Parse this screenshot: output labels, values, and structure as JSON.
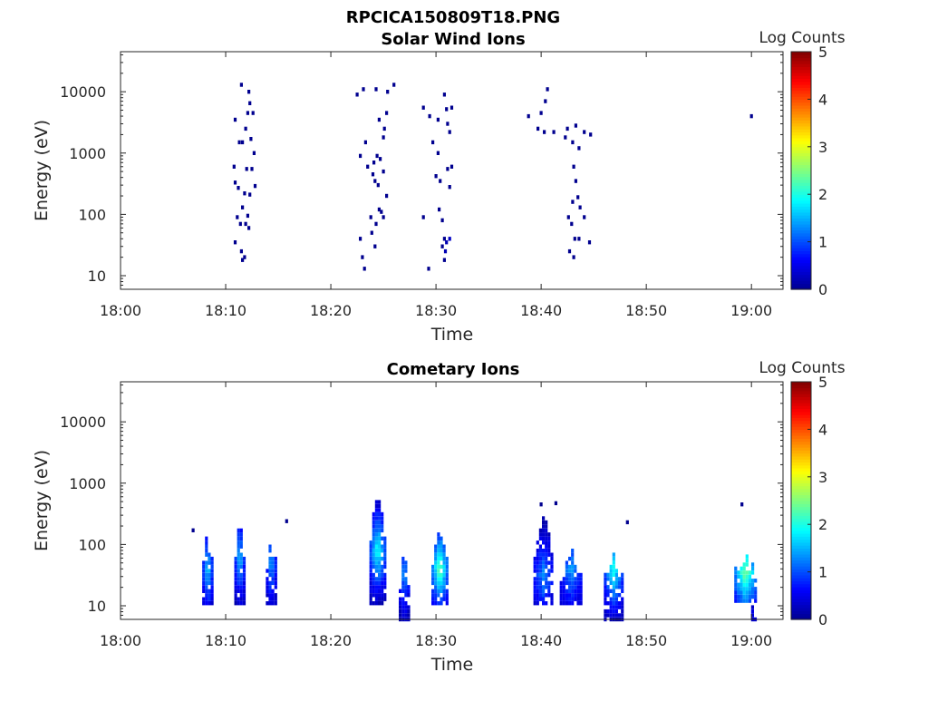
{
  "figure_title": "RPCICA150809T18.PNG",
  "colors": {
    "colormap": [
      "#00008f",
      "#0000ff",
      "#0080ff",
      "#00ffff",
      "#80ff80",
      "#ffff00",
      "#ff8000",
      "#ff0000",
      "#800000"
    ],
    "axis": "#262626"
  },
  "chart_data": [
    {
      "type": "heatmap",
      "title": "Solar Wind Ions",
      "xlabel": "Time",
      "ylabel": "Energy (eV)",
      "xticks": [
        "18:00",
        "18:10",
        "18:20",
        "18:30",
        "18:40",
        "18:50",
        "19:00"
      ],
      "xlim_minutes_after_1800": [
        0,
        63
      ],
      "yscale": "log",
      "ylim": [
        6,
        45000
      ],
      "yticks": [
        "10",
        "100",
        "1000",
        "10000"
      ],
      "colorbar": {
        "label": "Log Counts",
        "range": [
          0,
          5
        ],
        "ticks": [
          "0",
          "1",
          "2",
          "3",
          "4",
          "5"
        ]
      },
      "cells": [
        [
          10.8,
          600,
          0
        ],
        [
          11.5,
          13000,
          0
        ],
        [
          10.9,
          3500,
          0
        ],
        [
          11.3,
          1500,
          0
        ],
        [
          11.6,
          1500,
          0
        ],
        [
          11.9,
          2500,
          0
        ],
        [
          12.1,
          4500,
          0
        ],
        [
          12.3,
          6500,
          0
        ],
        [
          12.2,
          10000,
          0
        ],
        [
          12.6,
          4500,
          0
        ],
        [
          12.4,
          1700,
          0
        ],
        [
          12.7,
          1000,
          0
        ],
        [
          12.0,
          550,
          0
        ],
        [
          12.5,
          550,
          0
        ],
        [
          10.9,
          330,
          0
        ],
        [
          11.2,
          270,
          0
        ],
        [
          12.8,
          290,
          0
        ],
        [
          11.6,
          130,
          0
        ],
        [
          11.8,
          220,
          0
        ],
        [
          12.3,
          210,
          0
        ],
        [
          11.1,
          90,
          0
        ],
        [
          11.4,
          70,
          0
        ],
        [
          11.9,
          70,
          0
        ],
        [
          12.1,
          95,
          0
        ],
        [
          12.2,
          60,
          0
        ],
        [
          10.9,
          35,
          0
        ],
        [
          11.5,
          25,
          0
        ],
        [
          11.6,
          18,
          0
        ],
        [
          11.8,
          20,
          0
        ],
        [
          22.5,
          9000,
          0
        ],
        [
          23.1,
          11000,
          0
        ],
        [
          24.3,
          11000,
          0
        ],
        [
          25.4,
          10000,
          0
        ],
        [
          26.0,
          13000,
          0
        ],
        [
          24.6,
          3500,
          0
        ],
        [
          25.1,
          2500,
          0
        ],
        [
          25.3,
          4500,
          0
        ],
        [
          25.0,
          1800,
          0
        ],
        [
          23.3,
          1500,
          0
        ],
        [
          22.8,
          900,
          0
        ],
        [
          23.5,
          600,
          0
        ],
        [
          24.1,
          700,
          0
        ],
        [
          24.4,
          900,
          0
        ],
        [
          24.7,
          800,
          0
        ],
        [
          24.0,
          450,
          0
        ],
        [
          24.2,
          350,
          0
        ],
        [
          25.0,
          500,
          0
        ],
        [
          24.5,
          300,
          0
        ],
        [
          25.3,
          200,
          0
        ],
        [
          24.6,
          120,
          0
        ],
        [
          23.8,
          90,
          0
        ],
        [
          24.3,
          70,
          0
        ],
        [
          24.8,
          110,
          0
        ],
        [
          25.0,
          90,
          0
        ],
        [
          22.8,
          40,
          0
        ],
        [
          23.9,
          50,
          0
        ],
        [
          24.2,
          30,
          0
        ],
        [
          23.0,
          20,
          0
        ],
        [
          23.2,
          13,
          0
        ],
        [
          28.8,
          5500,
          0
        ],
        [
          29.4,
          4000,
          0
        ],
        [
          30.2,
          3500,
          0
        ],
        [
          30.8,
          9000,
          0
        ],
        [
          31.0,
          5200,
          0
        ],
        [
          31.5,
          5500,
          0
        ],
        [
          31.1,
          3000,
          0
        ],
        [
          31.3,
          2200,
          0
        ],
        [
          29.7,
          1500,
          0
        ],
        [
          30.2,
          1000,
          0
        ],
        [
          31.5,
          600,
          0
        ],
        [
          31.1,
          550,
          0
        ],
        [
          30.0,
          420,
          0
        ],
        [
          30.4,
          350,
          0
        ],
        [
          31.3,
          280,
          0
        ],
        [
          30.3,
          120,
          0
        ],
        [
          28.8,
          90,
          0
        ],
        [
          30.6,
          80,
          0
        ],
        [
          30.8,
          40,
          0
        ],
        [
          30.6,
          30,
          0
        ],
        [
          31.0,
          35,
          0.2
        ],
        [
          31.3,
          40,
          0.3
        ],
        [
          30.9,
          25,
          0.2
        ],
        [
          30.8,
          18,
          0
        ],
        [
          29.3,
          13,
          0
        ],
        [
          38.8,
          4000,
          0
        ],
        [
          40.6,
          11000,
          0
        ],
        [
          40.4,
          7000,
          0
        ],
        [
          40.0,
          4500,
          0
        ],
        [
          39.7,
          2500,
          0
        ],
        [
          40.3,
          2200,
          0
        ],
        [
          41.2,
          2200,
          0
        ],
        [
          42.5,
          2500,
          0
        ],
        [
          43.3,
          2800,
          0
        ],
        [
          44.1,
          2200,
          0
        ],
        [
          44.7,
          2000,
          0
        ],
        [
          42.3,
          1800,
          0
        ],
        [
          43.0,
          1500,
          0
        ],
        [
          43.6,
          1200,
          0
        ],
        [
          43.1,
          600,
          0
        ],
        [
          43.3,
          350,
          0
        ],
        [
          43.5,
          190,
          0
        ],
        [
          43.7,
          130,
          0
        ],
        [
          43.0,
          160,
          0
        ],
        [
          42.6,
          90,
          0
        ],
        [
          42.9,
          70,
          0
        ],
        [
          43.2,
          40,
          0
        ],
        [
          43.6,
          40,
          0
        ],
        [
          44.1,
          90,
          0
        ],
        [
          44.6,
          35,
          0
        ],
        [
          42.7,
          25,
          0
        ],
        [
          43.1,
          20,
          0
        ],
        [
          60.0,
          4000,
          0
        ]
      ]
    },
    {
      "type": "heatmap",
      "title": "Cometary Ions",
      "xlabel": "Time",
      "ylabel": "Energy (eV)",
      "xticks": [
        "18:00",
        "18:10",
        "18:20",
        "18:30",
        "18:40",
        "18:50",
        "19:00"
      ],
      "xlim_minutes_after_1800": [
        0,
        63
      ],
      "yscale": "log",
      "ylim": [
        6,
        45000
      ],
      "yticks": [
        "10",
        "100",
        "1000",
        "10000"
      ],
      "colorbar": {
        "label": "Log Counts",
        "range": [
          0,
          5
        ],
        "ticks": [
          "0",
          "1",
          "2",
          "3",
          "4",
          "5"
        ]
      },
      "blobs": [
        {
          "t": 8.4,
          "dt": 1.0,
          "e0": 11,
          "e1": 230,
          "peak": 1.6,
          "peak_e": 40
        },
        {
          "t": 11.5,
          "dt": 1.1,
          "e0": 11,
          "e1": 300,
          "peak": 1.5,
          "peak_e": 60
        },
        {
          "t": 14.5,
          "dt": 1.1,
          "e0": 11,
          "e1": 160,
          "peak": 1.3,
          "peak_e": 50
        },
        {
          "t": 24.6,
          "dt": 1.6,
          "e0": 11,
          "e1": 800,
          "peak": 1.9,
          "peak_e": 80
        },
        {
          "t": 27.2,
          "dt": 1.2,
          "e0": 6,
          "e1": 90,
          "peak": 1.3,
          "peak_e": 35
        },
        {
          "t": 30.5,
          "dt": 1.6,
          "e0": 11,
          "e1": 250,
          "peak": 2.3,
          "peak_e": 40
        },
        {
          "t": 40.3,
          "dt": 1.8,
          "e0": 11,
          "e1": 400,
          "peak": 1.2,
          "peak_e": 30
        },
        {
          "t": 43.0,
          "dt": 2.2,
          "e0": 11,
          "e1": 120,
          "peak": 1.3,
          "peak_e": 40
        },
        {
          "t": 47.0,
          "dt": 1.8,
          "e0": 6,
          "e1": 90,
          "peak": 1.9,
          "peak_e": 40
        },
        {
          "t": 59.6,
          "dt": 2.2,
          "e0": 12,
          "e1": 90,
          "peak": 2.4,
          "peak_e": 35
        },
        {
          "t": 60.4,
          "dt": 0.6,
          "e0": 6,
          "e1": 13,
          "peak": 0.3,
          "peak_e": 9
        }
      ],
      "cells": [
        [
          6.9,
          170,
          0
        ],
        [
          40.0,
          450,
          0
        ],
        [
          41.4,
          470,
          0
        ],
        [
          48.2,
          230,
          0
        ],
        [
          15.8,
          240,
          0
        ],
        [
          59.1,
          450,
          0
        ]
      ]
    }
  ]
}
